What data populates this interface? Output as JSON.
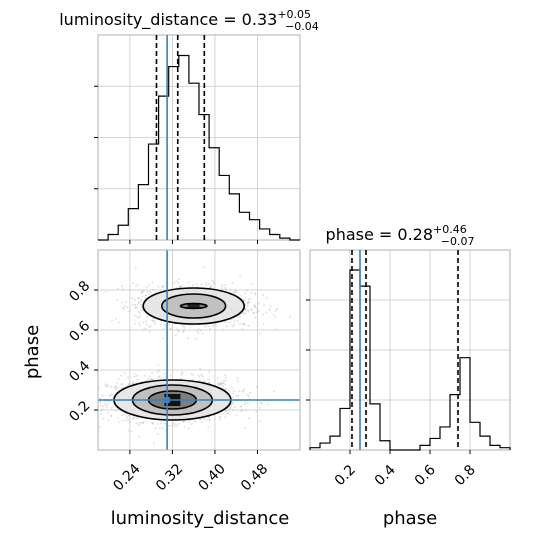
{
  "chart_data": {
    "type": "corner",
    "parameters": [
      "luminosity_distance",
      "phase"
    ],
    "truths": {
      "luminosity_distance": 0.31,
      "phase": 0.25
    },
    "panels": [
      {
        "id": "hist_luminosity_distance",
        "type": "histogram",
        "title": {
          "main": "luminosity_distance = 0.33",
          "plus": "+0.05",
          "minus": "−0.04"
        },
        "xlim": [
          0.18,
          0.56
        ],
        "quantiles": [
          0.29,
          0.33,
          0.38
        ],
        "truth": 0.31,
        "bin_edges": [
          0.18,
          0.199,
          0.218,
          0.237,
          0.256,
          0.275,
          0.294,
          0.313,
          0.332,
          0.351,
          0.37,
          0.389,
          0.408,
          0.427,
          0.446,
          0.465,
          0.484,
          0.503,
          0.522,
          0.541,
          0.56
        ],
        "counts": [
          0.0,
          0.03,
          0.08,
          0.17,
          0.3,
          0.52,
          0.78,
          0.94,
          1.0,
          0.85,
          0.68,
          0.5,
          0.35,
          0.25,
          0.15,
          0.11,
          0.06,
          0.03,
          0.01,
          0.0
        ],
        "xticks": [
          0.24,
          0.32,
          0.4,
          0.48
        ]
      },
      {
        "id": "hist_phase",
        "type": "histogram",
        "title": {
          "main": "phase = 0.28",
          "plus": "+0.46",
          "minus": "−0.07"
        },
        "xlim": [
          0.0,
          1.0
        ],
        "quantiles": [
          0.21,
          0.28,
          0.74
        ],
        "truth": 0.25,
        "bin_edges": [
          0.0,
          0.05,
          0.1,
          0.15,
          0.2,
          0.25,
          0.3,
          0.35,
          0.4,
          0.45,
          0.5,
          0.55,
          0.6,
          0.65,
          0.7,
          0.75,
          0.8,
          0.85,
          0.9,
          0.95,
          1.0
        ],
        "counts": [
          0.01,
          0.03,
          0.06,
          0.18,
          0.78,
          0.71,
          0.2,
          0.04,
          0.0,
          0.0,
          0.0,
          0.02,
          0.05,
          0.1,
          0.24,
          0.4,
          0.12,
          0.06,
          0.02,
          0.01
        ],
        "xticks": [
          0.2,
          0.4,
          0.6,
          0.8
        ]
      },
      {
        "id": "joint_luminosity_distance_phase",
        "type": "2d-density",
        "x": "luminosity_distance",
        "y": "phase",
        "xlim": [
          0.18,
          0.56
        ],
        "ylim": [
          0.0,
          1.0
        ],
        "xticks": [
          0.24,
          0.32,
          0.4,
          0.48
        ],
        "yticks": [
          0.2,
          0.4,
          0.6,
          0.8
        ],
        "truth": [
          0.31,
          0.25
        ],
        "modes": [
          {
            "center": [
              0.32,
              0.25
            ],
            "spread": [
              0.055,
              0.06
            ],
            "contours": [
              [
                0.045,
                0.045
              ],
              [
                0.075,
                0.075
              ],
              [
                0.11,
                0.1
              ]
            ]
          },
          {
            "center": [
              0.36,
              0.72
            ],
            "spread": [
              0.05,
              0.06
            ],
            "contours": [
              [
                0.025,
                0.012
              ],
              [
                0.06,
                0.06
              ],
              [
                0.095,
                0.09
              ]
            ]
          }
        ]
      }
    ],
    "xlabels": [
      "luminosity_distance",
      "phase"
    ],
    "ylabels": [
      "phase"
    ],
    "grid": true,
    "truth_color": "#3a7fbf",
    "line_color": "#000000"
  },
  "labels": {
    "x_left": "luminosity_distance",
    "x_right": "phase",
    "y_left": "phase"
  }
}
